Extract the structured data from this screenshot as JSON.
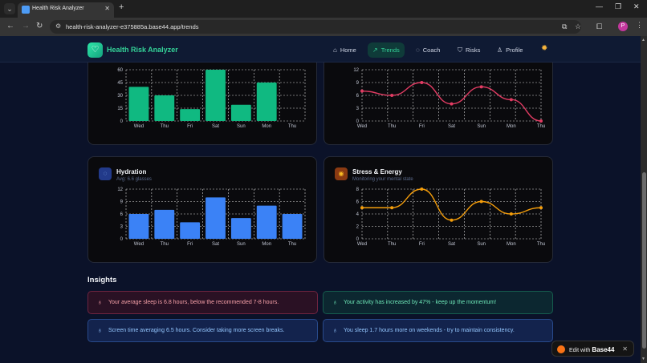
{
  "browser": {
    "tab_title": "Health Risk Analyzer",
    "tab_close": "✕",
    "new_tab": "+",
    "url": "health-risk-analyzer-e375885a.base44.app/trends",
    "profile_initial": "P",
    "win_minimize": "—",
    "win_restore": "❐",
    "win_close": "✕"
  },
  "header": {
    "brand": "Health Risk Analyzer",
    "nav": [
      {
        "label": "Home",
        "icon": "home-icon",
        "glyph": "⌂"
      },
      {
        "label": "Trends",
        "icon": "trend-up-icon",
        "glyph": "↗"
      },
      {
        "label": "Coach",
        "icon": "chat-icon",
        "glyph": "◌"
      },
      {
        "label": "Risks",
        "icon": "shield-icon",
        "glyph": "⛉"
      },
      {
        "label": "Profile",
        "icon": "user-icon",
        "glyph": "♙"
      }
    ],
    "theme_icon": "sun-icon"
  },
  "cards": {
    "activity": {
      "title": "",
      "subtitle": ""
    },
    "sleep": {
      "title": "",
      "subtitle": ""
    },
    "hydration": {
      "title": "Hydration",
      "subtitle": "Avg: 6.6 glasses"
    },
    "stress": {
      "title": "Stress & Energy",
      "subtitle": "Monitoring your mental state"
    }
  },
  "chart_data": [
    {
      "type": "bar",
      "categories": [
        "Wed",
        "Thu",
        "Fri",
        "Sat",
        "Sun",
        "Mon",
        "Thu"
      ],
      "values": [
        40,
        30,
        14,
        60,
        19,
        45,
        0
      ],
      "ylim": [
        0,
        60
      ],
      "yticks": [
        0,
        15,
        30,
        45,
        60
      ],
      "color": "#10b981",
      "grid": true
    },
    {
      "type": "line",
      "categories": [
        "Wed",
        "Thu",
        "Fri",
        "Sat",
        "Sun",
        "Mon",
        "Thu"
      ],
      "values": [
        7,
        6,
        9,
        4,
        8,
        5,
        0
      ],
      "ylim": [
        0,
        12
      ],
      "yticks": [
        0,
        3,
        6,
        9,
        12
      ],
      "color": "#e23c63",
      "grid": true
    },
    {
      "type": "bar",
      "categories": [
        "Wed",
        "Thu",
        "Fri",
        "Sat",
        "Sun",
        "Mon",
        "Thu"
      ],
      "values": [
        6,
        7,
        4,
        10,
        5,
        8,
        6
      ],
      "ylim": [
        0,
        12
      ],
      "yticks": [
        0,
        3,
        6,
        9,
        12
      ],
      "color": "#3b82f6",
      "grid": true
    },
    {
      "type": "line",
      "categories": [
        "Wed",
        "Thu",
        "Fri",
        "Sat",
        "Sun",
        "Mon",
        "Thu"
      ],
      "values": [
        5,
        5,
        8,
        3,
        6,
        4,
        5
      ],
      "ylim": [
        0,
        8
      ],
      "yticks": [
        0,
        2,
        4,
        6,
        8
      ],
      "color": "#f59e0b",
      "grid": true
    }
  ],
  "insights": {
    "title": "Insights",
    "items": [
      {
        "text": "Your average sleep is 6.8 hours, below the recommended 7-8 hours.",
        "tone": "red"
      },
      {
        "text": "Your activity has increased by 47% - keep up the momentum!",
        "tone": "green"
      },
      {
        "text": "Screen time averaging 6.5 hours. Consider taking more screen breaks.",
        "tone": "blue"
      },
      {
        "text": "You sleep 1.7 hours more on weekends - try to maintain consistency.",
        "tone": "blue"
      }
    ]
  },
  "badge": {
    "prefix": "Edit with",
    "brand": "Base44",
    "close": "✕"
  }
}
